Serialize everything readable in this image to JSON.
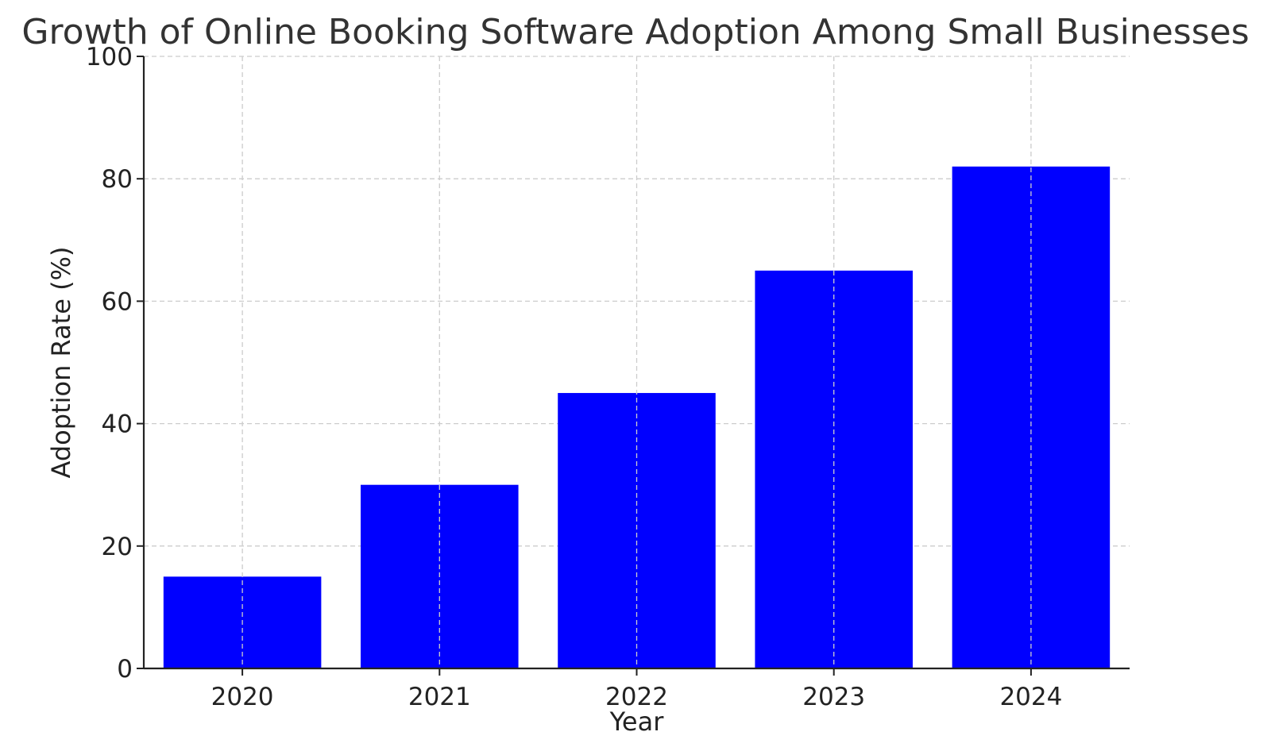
{
  "chart_data": {
    "type": "bar",
    "title": "Growth of Online Booking Software Adoption Among Small Businesses",
    "xlabel": "Year",
    "ylabel": "Adoption Rate (%)",
    "categories": [
      "2020",
      "2021",
      "2022",
      "2023",
      "2024"
    ],
    "values": [
      15,
      30,
      45,
      65,
      82
    ],
    "ylim": [
      0,
      100
    ],
    "yticks": [
      0,
      20,
      40,
      60,
      80,
      100
    ],
    "grid": true,
    "bar_color": "#0000ff"
  }
}
